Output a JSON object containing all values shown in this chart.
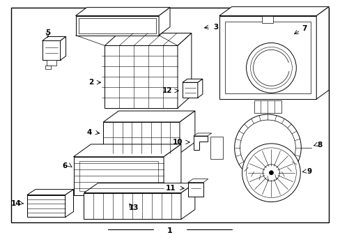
{
  "bg_color": "#ffffff",
  "border_color": "#000000",
  "line_color": "#000000",
  "text_color": "#000000",
  "fig_width": 4.89,
  "fig_height": 3.6,
  "dpi": 100
}
